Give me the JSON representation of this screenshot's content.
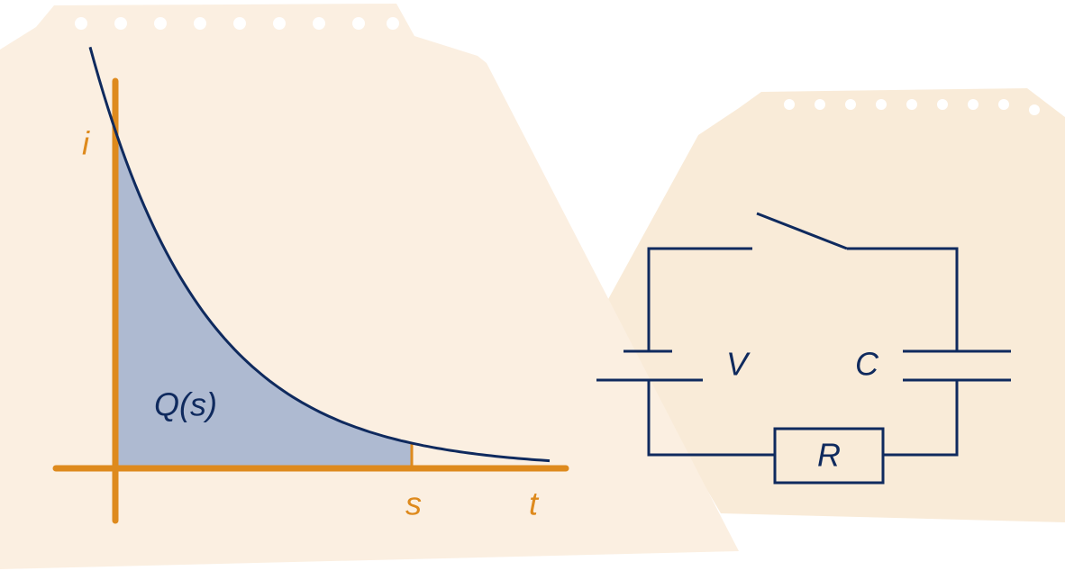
{
  "graph": {
    "y_axis_label": "i",
    "x_axis_label": "t",
    "x_marker_label": "s",
    "area_label": "Q(s)"
  },
  "circuit": {
    "battery_label": "V",
    "capacitor_label": "C",
    "resistor_label": "R"
  }
}
